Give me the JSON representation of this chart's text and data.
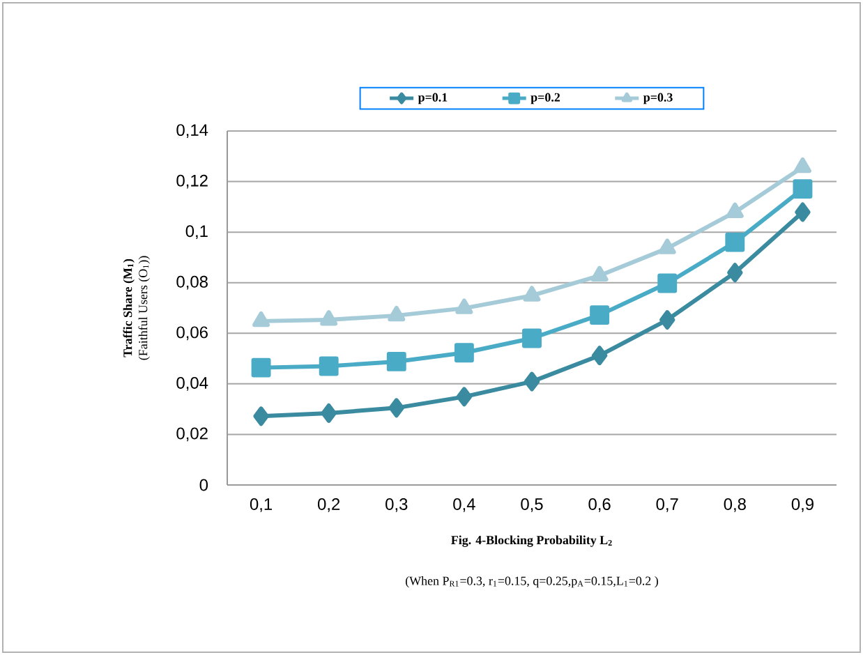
{
  "chart_data": {
    "type": "line",
    "xlabel": "Fig. 4-Blocking Probability L$_{2}$",
    "ylabel": "Traffic Share (M$_{1}$)",
    "annotations": [
      "(Faithful Users (O$_{1}$))",
      "(When P$_{R1}$=0.3, r$_{1}$=0.15,  q=0.25,p$_{A}$=0.15,L$_{1}$=0.2 )"
    ],
    "categories": [
      "0,1",
      "0,2",
      "0,3",
      "0,4",
      "0,5",
      "0,6",
      "0,7",
      "0,8",
      "0,9"
    ],
    "series": [
      {
        "name": "p=0.1",
        "color": "#3a8aa0",
        "marker": "diamond",
        "values": [
          0.0272,
          0.0284,
          0.0305,
          0.0349,
          0.0409,
          0.0512,
          0.0653,
          0.084,
          0.1079
        ]
      },
      {
        "name": "p=0.2",
        "color": "#4aabc6",
        "marker": "square",
        "values": [
          0.0464,
          0.047,
          0.0488,
          0.0523,
          0.058,
          0.0672,
          0.0798,
          0.096,
          0.1171
        ]
      },
      {
        "name": "p=0.3",
        "color": "#a5cbd8",
        "marker": "triangle",
        "values": [
          0.0648,
          0.0653,
          0.067,
          0.0699,
          0.0749,
          0.0828,
          0.0936,
          0.1079,
          0.1257
        ]
      }
    ],
    "ylim": [
      0,
      0.14
    ],
    "yticks": [
      {
        "value": 0,
        "label": "0"
      },
      {
        "value": 0.02,
        "label": "0,02"
      },
      {
        "value": 0.04,
        "label": "0,04"
      },
      {
        "value": 0.06,
        "label": "0,06"
      },
      {
        "value": 0.08,
        "label": "0,08"
      },
      {
        "value": 0.1,
        "label": "0,1"
      },
      {
        "value": 0.12,
        "label": "0,12"
      },
      {
        "value": 0.14,
        "label": "0,14"
      }
    ],
    "grid": "y",
    "legend": "top"
  }
}
